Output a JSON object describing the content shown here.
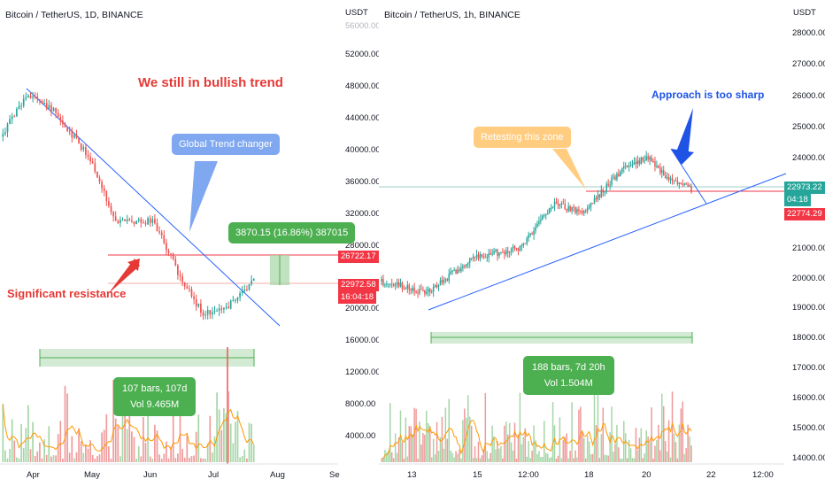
{
  "left": {
    "title": "Bitcoin / TetherUS, 1D, BINANCE",
    "unit": "USDT",
    "price_axis": [
      "52000.00",
      "48000.00",
      "44000.00",
      "40000.00",
      "36000.00",
      "32000.00",
      "28000.00",
      "20000.00",
      "16000.00",
      "12000.00",
      "8000.00",
      "4000.00"
    ],
    "price_axis_top_faded": "56000.00",
    "time_axis": [
      "Apr",
      "May",
      "Jun",
      "Jul",
      "Aug",
      "Se"
    ],
    "annotation_trend": "We still in bullish trend",
    "annotation_changer": "Global Trend changer",
    "annotation_resistance": "Significant resistance",
    "measure_label": "3870.15 (16.86%) 387015",
    "range_line1": "107 bars, 107d",
    "range_line2": "Vol 9.465M",
    "tag_resistance": "26722.17",
    "tag_price": "22972.58",
    "tag_countdown": "16:04:18",
    "colors": {
      "up": "#26a69a",
      "down": "#ef5350",
      "trendline": "#2962ff",
      "resistance": "#f23645",
      "callout_blue": "#7fa8f0",
      "callout_green": "#4caf50",
      "annotation_red": "#e53935"
    }
  },
  "right": {
    "title": "Bitcoin / TetherUS, 1h, BINANCE",
    "unit": "USDT",
    "price_axis": [
      "28000.00",
      "27000.00",
      "26000.00",
      "25000.00",
      "24000.00",
      "21000.00",
      "20000.00",
      "19000.00",
      "18000.00",
      "17000.00",
      "16000.00",
      "15000.00",
      "14000.00"
    ],
    "time_axis": [
      "13",
      "15",
      "12:00",
      "18",
      "20",
      "22",
      "12:00"
    ],
    "annotation_retest": "Retesting this zone",
    "annotation_approach": "Approach is too sharp",
    "range_line1": "188 bars, 7d 20h",
    "range_line2": "Vol 1.504M",
    "tag_price": "22973.22",
    "tag_countdown": "04:18",
    "tag_resistance": "22774.29",
    "colors": {
      "callout_orange": "#ffcc80",
      "callout_green": "#4caf50",
      "annotation_blue": "#1e53e5"
    }
  }
}
